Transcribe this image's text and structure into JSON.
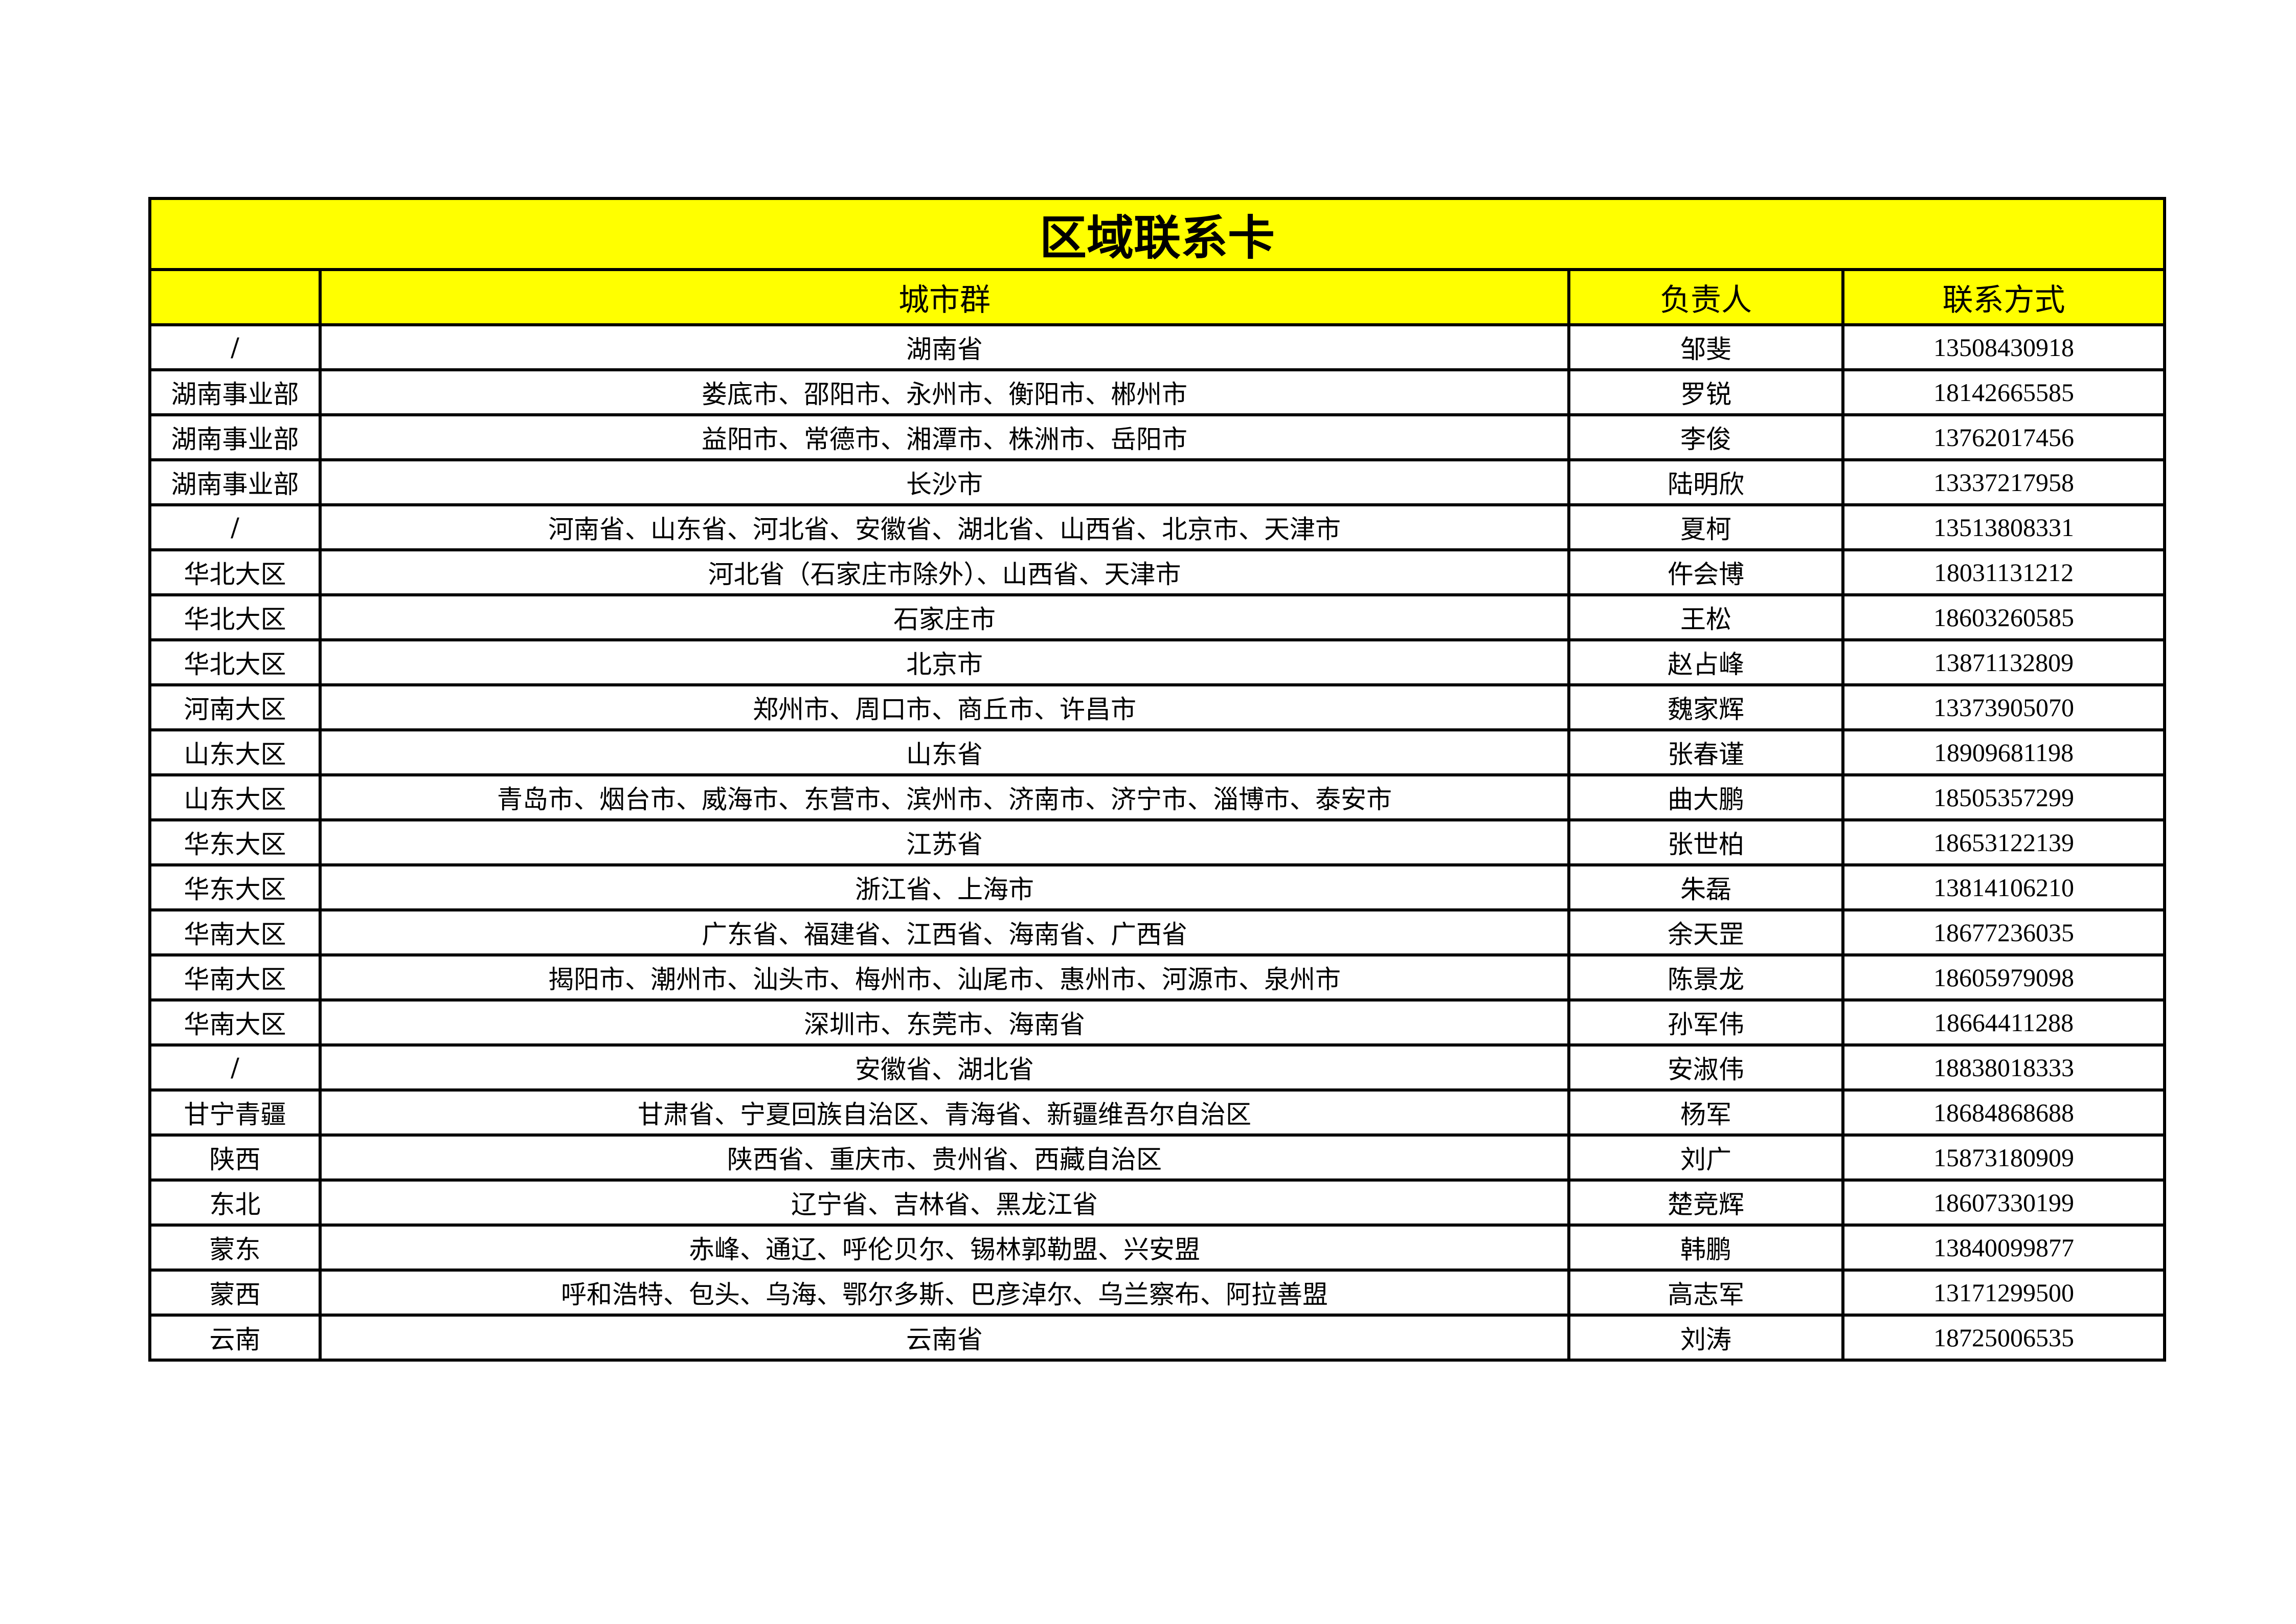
{
  "title": "区域联系卡",
  "header": {
    "region": "",
    "cities": "城市群",
    "owner": "负责人",
    "contact": "联系方式"
  },
  "colors": {
    "header_bg": "#ffff00",
    "border": "#000000"
  },
  "rows": [
    {
      "region": "/",
      "cities": "湖南省",
      "owner": "邹斐",
      "contact": "13508430918"
    },
    {
      "region": "湖南事业部",
      "cities": "娄底市、邵阳市、永州市、衡阳市、郴州市",
      "owner": "罗锐",
      "contact": "18142665585"
    },
    {
      "region": "湖南事业部",
      "cities": "益阳市、常德市、湘潭市、株洲市、岳阳市",
      "owner": "李俊",
      "contact": "13762017456"
    },
    {
      "region": "湖南事业部",
      "cities": "长沙市",
      "owner": "陆明欣",
      "contact": "13337217958"
    },
    {
      "region": "/",
      "cities": "河南省、山东省、河北省、安徽省、湖北省、山西省、北京市、天津市",
      "owner": "夏柯",
      "contact": "13513808331"
    },
    {
      "region": "华北大区",
      "cities": "河北省（石家庄市除外）、山西省、天津市",
      "owner": "仵会博",
      "contact": "18031131212"
    },
    {
      "region": "华北大区",
      "cities": "石家庄市",
      "owner": "王松",
      "contact": "18603260585"
    },
    {
      "region": "华北大区",
      "cities": "北京市",
      "owner": "赵占峰",
      "contact": "13871132809"
    },
    {
      "region": "河南大区",
      "cities": "郑州市、周口市、商丘市、许昌市",
      "owner": "魏家辉",
      "contact": "13373905070"
    },
    {
      "region": "山东大区",
      "cities": "山东省",
      "owner": "张春谨",
      "contact": "18909681198"
    },
    {
      "region": "山东大区",
      "cities": "青岛市、烟台市、威海市、东营市、滨州市、济南市、济宁市、淄博市、泰安市",
      "owner": "曲大鹏",
      "contact": "18505357299"
    },
    {
      "region": "华东大区",
      "cities": "江苏省",
      "owner": "张世柏",
      "contact": "18653122139"
    },
    {
      "region": "华东大区",
      "cities": "浙江省、上海市",
      "owner": "朱磊",
      "contact": "13814106210"
    },
    {
      "region": "华南大区",
      "cities": "广东省、福建省、江西省、海南省、广西省",
      "owner": "余天罡",
      "contact": "18677236035"
    },
    {
      "region": "华南大区",
      "cities": "揭阳市、潮州市、汕头市、梅州市、汕尾市、惠州市、河源市、泉州市",
      "owner": "陈景龙",
      "contact": "18605979098"
    },
    {
      "region": "华南大区",
      "cities": "深圳市、东莞市、海南省",
      "owner": "孙军伟",
      "contact": "18664411288"
    },
    {
      "region": "/",
      "cities": "安徽省、湖北省",
      "owner": "安淑伟",
      "contact": "18838018333"
    },
    {
      "region": "甘宁青疆",
      "cities": "甘肃省、宁夏回族自治区、青海省、新疆维吾尔自治区",
      "owner": "杨军",
      "contact": "18684868688"
    },
    {
      "region": "陕西",
      "cities": "陕西省、重庆市、贵州省、西藏自治区",
      "owner": "刘广",
      "contact": "15873180909"
    },
    {
      "region": "东北",
      "cities": "辽宁省、吉林省、黑龙江省",
      "owner": "楚竞辉",
      "contact": "18607330199"
    },
    {
      "region": "蒙东",
      "cities": "赤峰、通辽、呼伦贝尔、锡林郭勒盟、兴安盟",
      "owner": "韩鹏",
      "contact": "13840099877"
    },
    {
      "region": "蒙西",
      "cities": "呼和浩特、包头、乌海、鄂尔多斯、巴彦淖尔、乌兰察布、阿拉善盟",
      "owner": "高志军",
      "contact": "13171299500"
    },
    {
      "region": "云南",
      "cities": "云南省",
      "owner": "刘涛",
      "contact": "18725006535"
    }
  ]
}
